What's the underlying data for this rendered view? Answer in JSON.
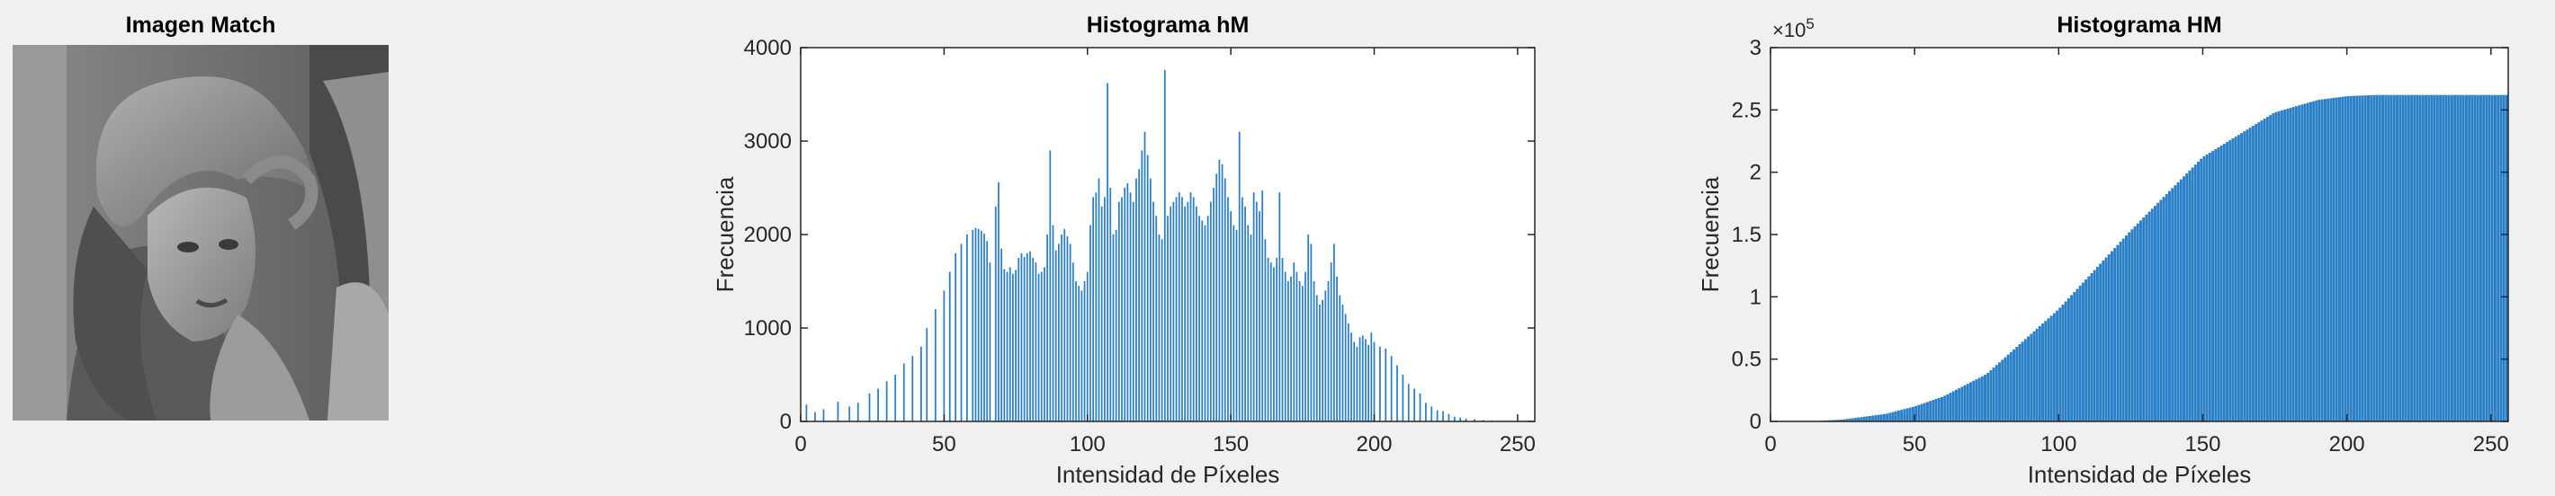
{
  "panels": [
    {
      "title": "Imagen Match"
    },
    {
      "title": "Histograma hM"
    },
    {
      "title": "Histograma HM"
    }
  ],
  "colors": {
    "bar": "#2b7fc7",
    "axis": "#262626",
    "background": "#f0f0f0",
    "plot_bg": "#ffffff"
  },
  "chart_data": [
    {
      "type": "bar",
      "title": "Histograma hM",
      "xlabel": "Intensidad de Píxeles",
      "ylabel": "Frecuencia",
      "xlim": [
        0,
        256
      ],
      "ylim": [
        0,
        4000
      ],
      "xticks": [
        0,
        50,
        100,
        150,
        200,
        250
      ],
      "yticks": [
        0,
        1000,
        2000,
        3000,
        4000
      ],
      "grid": false,
      "x": [
        2,
        5,
        8,
        13,
        17,
        20,
        24,
        27,
        30,
        33,
        36,
        39,
        42,
        44,
        47,
        50,
        52,
        54,
        56,
        58,
        60,
        61,
        62,
        63,
        64,
        65,
        66,
        68,
        69,
        70,
        71,
        72,
        73,
        74,
        75,
        76,
        77,
        78,
        79,
        80,
        81,
        82,
        83,
        84,
        85,
        86,
        87,
        88,
        89,
        90,
        91,
        92,
        93,
        94,
        95,
        96,
        97,
        98,
        99,
        100,
        101,
        102,
        103,
        104,
        105,
        106,
        107,
        108,
        109,
        110,
        111,
        112,
        113,
        114,
        115,
        116,
        117,
        118,
        119,
        120,
        121,
        122,
        123,
        124,
        125,
        126,
        127,
        128,
        129,
        130,
        131,
        132,
        133,
        134,
        135,
        136,
        137,
        138,
        139,
        140,
        141,
        142,
        143,
        144,
        145,
        146,
        147,
        148,
        149,
        150,
        151,
        152,
        153,
        154,
        155,
        156,
        157,
        158,
        159,
        160,
        161,
        162,
        163,
        164,
        165,
        166,
        167,
        168,
        169,
        170,
        171,
        172,
        173,
        174,
        175,
        176,
        177,
        178,
        179,
        180,
        181,
        182,
        183,
        184,
        185,
        186,
        187,
        188,
        189,
        190,
        191,
        192,
        193,
        194,
        195,
        196,
        197,
        198,
        199,
        200,
        202,
        204,
        206,
        208,
        210,
        212,
        214,
        216,
        218,
        220,
        222,
        224,
        226,
        228,
        230,
        232,
        235,
        238,
        241,
        244,
        247,
        250
      ],
      "values": [
        180,
        100,
        130,
        210,
        160,
        200,
        300,
        350,
        430,
        500,
        620,
        700,
        800,
        1000,
        1200,
        1400,
        1600,
        1800,
        1900,
        2000,
        2050,
        2070,
        2060,
        2040,
        2010,
        1930,
        1700,
        2300,
        2560,
        1850,
        1630,
        1600,
        1650,
        1580,
        1620,
        1750,
        1800,
        1760,
        1800,
        1820,
        1750,
        1700,
        1580,
        1600,
        1650,
        2000,
        2900,
        2100,
        1830,
        1900,
        2000,
        2060,
        1980,
        1900,
        1700,
        1500,
        1450,
        1400,
        1500,
        1600,
        2100,
        2400,
        2450,
        2600,
        2300,
        2400,
        3620,
        2500,
        2000,
        2050,
        2350,
        2400,
        2500,
        2550,
        2450,
        2350,
        2600,
        2700,
        2900,
        3100,
        2850,
        2600,
        2350,
        2200,
        2000,
        1950,
        3760,
        2200,
        2300,
        2350,
        2400,
        2450,
        2400,
        2300,
        2350,
        2450,
        2400,
        2300,
        2200,
        2150,
        2100,
        2200,
        2350,
        2500,
        2650,
        2800,
        2750,
        2600,
        2400,
        2250,
        2100,
        2050,
        3100,
        2400,
        2300,
        2100,
        2000,
        2450,
        2350,
        2250,
        2470,
        1950,
        1750,
        1700,
        1650,
        1750,
        2450,
        1750,
        1600,
        1500,
        1550,
        1700,
        1600,
        1500,
        1450,
        1600,
        2000,
        1900,
        1500,
        1350,
        1250,
        1300,
        1400,
        1500,
        1700,
        1900,
        1550,
        1350,
        1250,
        1150,
        1050,
        950,
        850,
        800,
        900,
        920,
        880,
        820,
        950,
        850,
        800,
        780,
        700,
        600,
        500,
        400,
        350,
        300,
        200,
        160,
        120,
        110,
        80,
        50,
        40,
        30,
        25,
        15,
        10,
        5,
        5,
        10
      ]
    },
    {
      "type": "bar",
      "title": "Histograma HM",
      "xlabel": "Intensidad de Píxeles",
      "ylabel": "Frecuencia",
      "xlim": [
        0,
        256
      ],
      "ylim": [
        0,
        3
      ],
      "xticks": [
        0,
        50,
        100,
        150,
        200,
        250
      ],
      "yticks": [
        0,
        0.5,
        1,
        1.5,
        2,
        2.5,
        3
      ],
      "ytick_labels": [
        "0",
        "0.5",
        "1",
        "1.5",
        "2",
        "2.5",
        "3"
      ],
      "y_exponent_base": "×10",
      "y_exponent": "5",
      "grid": false,
      "series_desc_x": [
        0,
        15,
        25,
        40,
        50,
        60,
        75,
        100,
        125,
        150,
        175,
        190,
        200,
        210,
        220,
        256
      ],
      "series_desc_values": [
        0,
        0.002,
        0.015,
        0.06,
        0.12,
        0.2,
        0.38,
        0.9,
        1.53,
        2.12,
        2.48,
        2.58,
        2.61,
        2.62,
        2.62,
        2.62
      ]
    }
  ]
}
